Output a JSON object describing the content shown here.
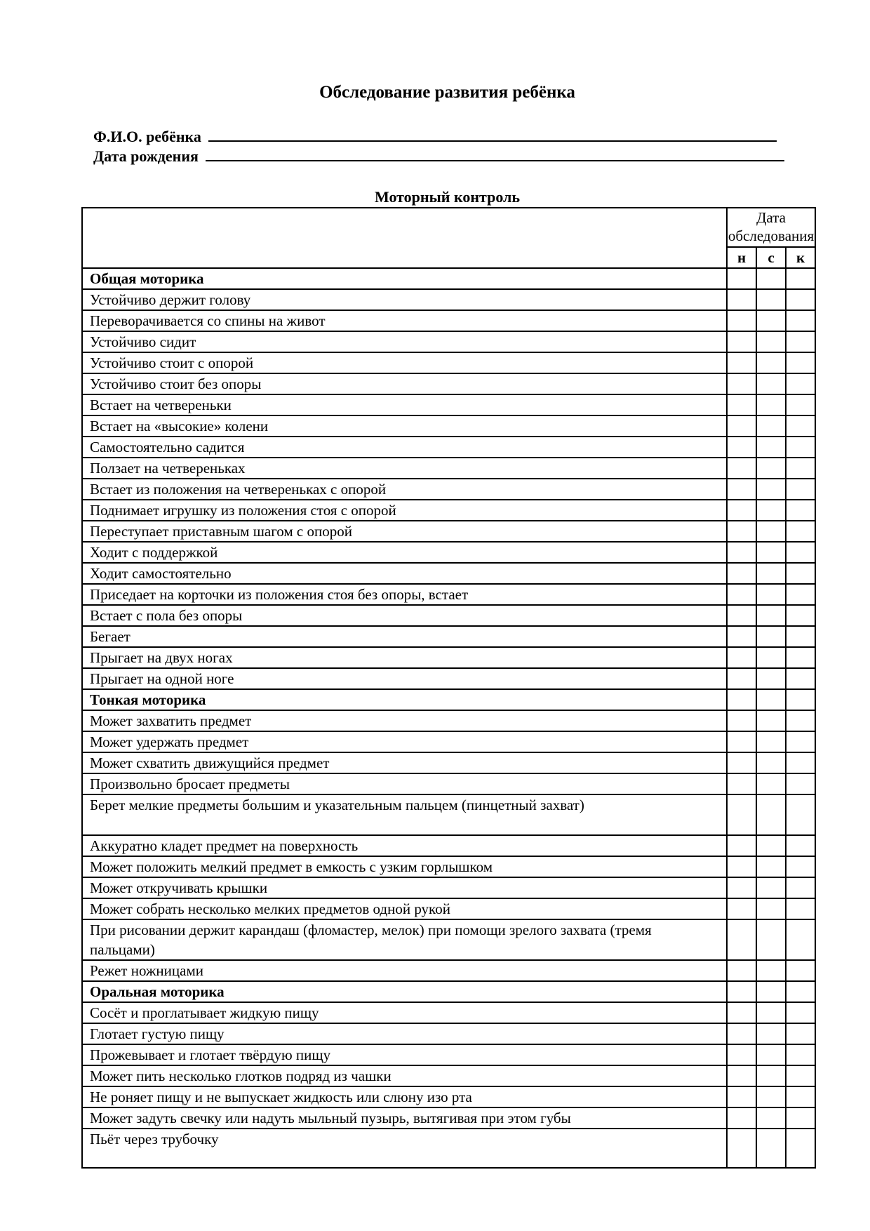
{
  "title": "Обследование развития ребёнка",
  "fields": {
    "name_label": "Ф.И.О. ребёнка",
    "dob_label": "Дата рождения"
  },
  "section_title": "Моторный контроль",
  "table": {
    "date_header": "Дата обследования",
    "cols": [
      "н",
      "с",
      "к"
    ],
    "rows": [
      {
        "text": "Общая моторика",
        "section": true
      },
      {
        "text": "Устойчиво держит голову"
      },
      {
        "text": "Переворачивается со спины на живот"
      },
      {
        "text": "Устойчиво сидит"
      },
      {
        "text": "Устойчиво стоит с опорой"
      },
      {
        "text": "Устойчиво стоит без опоры"
      },
      {
        "text": "Встает на четвереньки"
      },
      {
        "text": "Встает на «высокие» колени"
      },
      {
        "text": "Самостоятельно садится"
      },
      {
        "text": "Ползает на четвереньках"
      },
      {
        "text": "Встает из положения на четвереньках с опорой"
      },
      {
        "text": "Поднимает игрушку из положения стоя с опорой"
      },
      {
        "text": "Переступает приставным шагом с опорой"
      },
      {
        "text": "Ходит с поддержкой"
      },
      {
        "text": "Ходит самостоятельно"
      },
      {
        "text": "Приседает на корточки из положения стоя без опоры, встает"
      },
      {
        "text": "Встает с пола без опоры"
      },
      {
        "text": "Бегает"
      },
      {
        "text": "Прыгает на двух ногах"
      },
      {
        "text": "Прыгает на одной ноге"
      },
      {
        "text": "Тонкая моторика",
        "section": true
      },
      {
        "text": "Может захватить предмет"
      },
      {
        "text": "Может удержать предмет"
      },
      {
        "text": "Может схватить движущийся предмет"
      },
      {
        "text": "Произвольно бросает предметы"
      },
      {
        "text": "Берет мелкие предметы большим и указательным пальцем (пинцетный захват)",
        "tall": true
      },
      {
        "text": "Аккуратно кладет предмет на поверхность"
      },
      {
        "text": "Может положить мелкий предмет в емкость с узким горлышком"
      },
      {
        "text": "Может откручивать крышки"
      },
      {
        "text": "Может собрать несколько  мелких предметов одной рукой"
      },
      {
        "text": "При рисовании держит карандаш (фломастер, мелок) при помощи зрелого захвата (тремя пальцами)",
        "tall": true
      },
      {
        "text": "Режет ножницами"
      },
      {
        "text": "Оральная моторика",
        "section": true
      },
      {
        "text": "Сосёт и проглатывает жидкую пищу"
      },
      {
        "text": "Глотает густую пищу"
      },
      {
        "text": "Прожевывает и глотает твёрдую пищу"
      },
      {
        "text": "Может пить несколько глотков подряд из чашки"
      },
      {
        "text": "Не роняет пищу и не выпускает жидкость или слюну изо рта"
      },
      {
        "text": "Может задуть свечку или надуть мыльный пузырь, вытягивая при этом губы"
      },
      {
        "text": "Пьёт через трубочку",
        "last": true
      }
    ]
  }
}
